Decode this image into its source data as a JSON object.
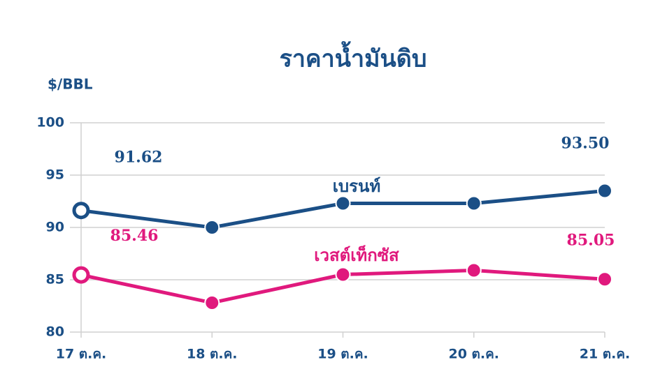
{
  "chart_data": {
    "type": "line",
    "title": "ราคาน้ำมันดิบ",
    "y_label": "$/BBL",
    "categories": [
      "17 ต.ค.",
      "18 ต.ค.",
      "19 ต.ค.",
      "20 ต.ค.",
      "21 ต.ค."
    ],
    "series": [
      {
        "name": "เบรนท์",
        "color": "#1b4f86",
        "values": [
          91.62,
          90.0,
          92.3,
          92.3,
          93.5
        ],
        "value_labels": [
          "91.62",
          null,
          null,
          null,
          "93.50"
        ]
      },
      {
        "name": "เวสต์เท็กซัส",
        "color": "#e0197d",
        "values": [
          85.46,
          82.8,
          85.5,
          85.9,
          85.05
        ],
        "value_labels": [
          "85.46",
          null,
          null,
          null,
          "85.05"
        ]
      }
    ],
    "ylim": [
      80,
      100
    ],
    "yticks": [
      80,
      85,
      90,
      95,
      100
    ],
    "grid": true
  }
}
